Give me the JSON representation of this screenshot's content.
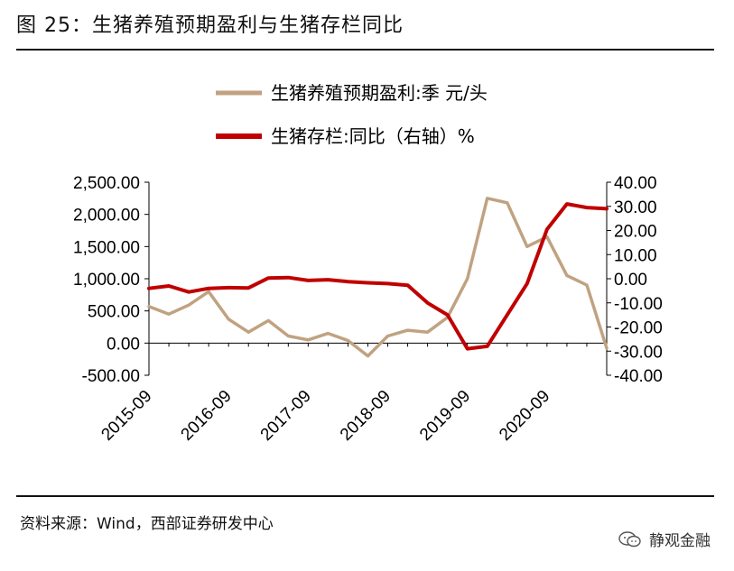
{
  "figure": {
    "title": "图 25：生猪养殖预期盈利与生猪存栏同比",
    "source": "资料来源：Wind，西部证券研发中心",
    "watermark": "静观金融"
  },
  "chart_data": {
    "type": "line",
    "title": "",
    "xlabel": "",
    "ylabel": "",
    "x": [
      "2015-09",
      "2015-12",
      "2016-03",
      "2016-06",
      "2016-09",
      "2016-12",
      "2017-03",
      "2017-06",
      "2017-09",
      "2017-12",
      "2018-03",
      "2018-06",
      "2018-09",
      "2018-12",
      "2019-03",
      "2019-06",
      "2019-09",
      "2019-12",
      "2020-03",
      "2020-06",
      "2020-09",
      "2020-12",
      "2021-03",
      "2021-06"
    ],
    "x_tick_labels": [
      "2015-09",
      "2016-09",
      "2017-09",
      "2018-09",
      "2019-09",
      "2020-09"
    ],
    "legend_position": "top-center",
    "grid": false,
    "series": [
      {
        "name": "生猪养殖预期盈利:季 元/头",
        "axis": "left",
        "color": "#c0a281",
        "values": [
          570,
          450,
          590,
          800,
          370,
          170,
          350,
          110,
          50,
          150,
          40,
          -200,
          110,
          200,
          170,
          400,
          1000,
          2250,
          2180,
          1500,
          1650,
          1050,
          900,
          -80
        ]
      },
      {
        "name": "生猪存栏:同比（右轴）%",
        "axis": "right",
        "color": "#c00000",
        "values": [
          -4,
          -3,
          -5.5,
          -4,
          -3.7,
          -3.8,
          0.3,
          0.5,
          -0.7,
          -0.4,
          -1.2,
          -1.7,
          -2,
          -2.7,
          -10,
          -15,
          -29,
          -28,
          -15,
          -2,
          20.5,
          31,
          29.5,
          29
        ]
      }
    ],
    "y_left": {
      "range": [
        -500,
        2500
      ],
      "ticks": [
        2500,
        2000,
        1500,
        1000,
        500,
        0,
        -500
      ],
      "tick_labels": [
        "2,500.00",
        "2,000.00",
        "1,500.00",
        "1,000.00",
        "500.00",
        "0.00",
        "-500.00"
      ]
    },
    "y_right": {
      "range": [
        -40,
        40
      ],
      "ticks": [
        40,
        30,
        20,
        10,
        0,
        -10,
        -20,
        -30,
        -40
      ],
      "tick_labels": [
        "40.00",
        "30.00",
        "20.00",
        "10.00",
        "0.00",
        "-10.00",
        "-20.00",
        "-30.00",
        "-40.00"
      ]
    }
  }
}
